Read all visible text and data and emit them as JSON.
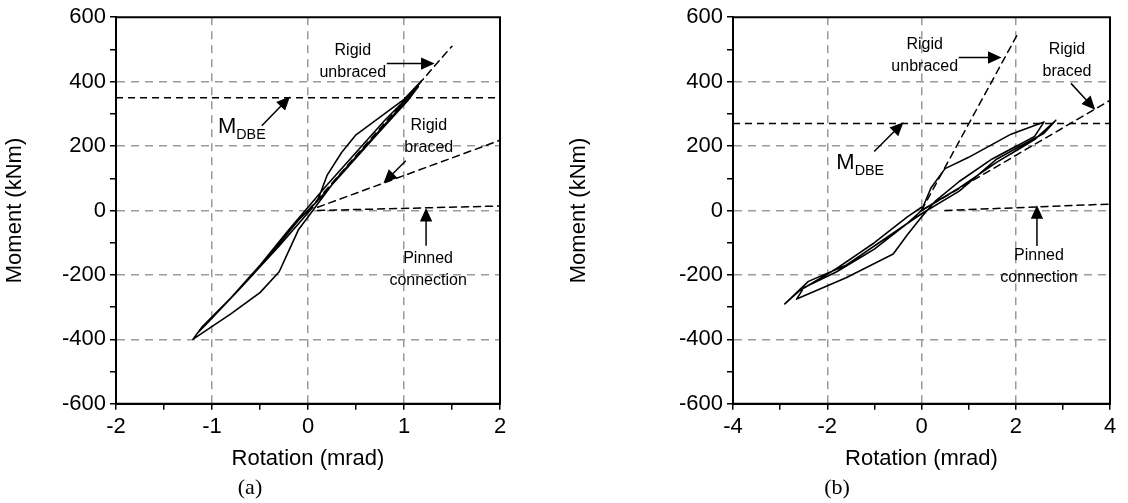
{
  "chart_data": [
    {
      "type": "line",
      "title": "(a)",
      "xlabel": "Rotation (mrad)",
      "ylabel": "Moment (kNm)",
      "xlim": [
        -2,
        2
      ],
      "ylim": [
        -600,
        600
      ],
      "xticks": [
        -2,
        {
          "value": -1.5,
          "label": null
        },
        -1,
        {
          "value": -0.5,
          "label": null
        },
        0,
        {
          "value": 0.5,
          "label": null
        },
        1,
        {
          "value": 1.5,
          "label": null
        },
        2
      ],
      "yticks": [
        -600,
        {
          "value": -500,
          "label": null
        },
        -400,
        {
          "value": -300,
          "label": null
        },
        -200,
        {
          "value": -100,
          "label": null
        },
        0,
        {
          "value": 100,
          "label": null
        },
        200,
        {
          "value": 300,
          "label": null
        },
        400,
        {
          "value": 500,
          "label": null
        },
        600
      ],
      "grid": true,
      "marker": "none",
      "series": [
        {
          "color": "#000000",
          "line_style": "solid",
          "x": [
            0,
            0.1,
            0.2,
            0.35,
            0.5,
            0.75,
            1.0,
            1.18,
            1.1,
            0.9,
            0.6,
            0.3,
            0.1,
            0,
            -0.1,
            -0.3,
            -0.5,
            -0.8,
            -1.2,
            -1.1,
            -0.8,
            -0.5,
            -0.2,
            0,
            0.2,
            0.5,
            0.8,
            1.1,
            1.15,
            1.05,
            0.7,
            0.4,
            0.1,
            -0.1,
            -0.4,
            -0.8,
            -1.15,
            -1.05,
            -0.7,
            -0.3,
            0.05
          ],
          "values": [
            0,
            30,
            110,
            180,
            235,
            290,
            345,
            402,
            370,
            300,
            200,
            100,
            20,
            -20,
            -60,
            -190,
            -255,
            -320,
            -400,
            -360,
            -270,
            -170,
            -60,
            10,
            80,
            180,
            280,
            370,
            385,
            345,
            230,
            130,
            30,
            -30,
            -140,
            -270,
            -380,
            -350,
            -240,
            -110,
            10
          ]
        },
        {
          "color": "#000000",
          "line_style": "dashed",
          "x": [
            0,
            1.5
          ],
          "values": [
            0,
            510
          ]
        },
        {
          "color": "#000000",
          "line_style": "dashed",
          "x": [
            0.1,
            2
          ],
          "values": [
            10,
            218
          ]
        },
        {
          "color": "#000000",
          "line_style": "dashed",
          "x": [
            0.1,
            2
          ],
          "values": [
            0,
            14
          ]
        }
      ],
      "ref_lines": [
        {
          "axis": "y",
          "value": 350,
          "label": "M$_{DBE}$",
          "color": "#000000",
          "line_style": "dashed"
        }
      ],
      "annotations": [
        {
          "text": "Rigid\nunbraced",
          "x": 1.3,
          "y": 456
        },
        {
          "text": "Rigid\nbraced",
          "x": 0.8,
          "y": 89
        },
        {
          "text": "Pinned\nconnection",
          "x": 1.23,
          "y": 2
        }
      ]
    },
    {
      "type": "line",
      "title": "(b)",
      "xlabel": "Rotation (mrad)",
      "ylabel": "Moment (kNm)",
      "xlim": [
        -4,
        4
      ],
      "ylim": [
        -600,
        600
      ],
      "xticks": [
        -4,
        {
          "value": -3,
          "label": null
        },
        -2,
        {
          "value": -1,
          "label": null
        },
        0,
        {
          "value": 1,
          "label": null
        },
        2,
        {
          "value": 3,
          "label": null
        },
        4
      ],
      "yticks": [
        -600,
        {
          "value": -500,
          "label": null
        },
        -400,
        {
          "value": -300,
          "label": null
        },
        -200,
        {
          "value": -100,
          "label": null
        },
        0,
        {
          "value": 100,
          "label": null
        },
        200,
        {
          "value": 300,
          "label": null
        },
        400,
        {
          "value": 500,
          "label": null
        },
        600
      ],
      "grid": true,
      "marker": "none",
      "series": [
        {
          "color": "#000000",
          "line_style": "solid",
          "x": [
            0,
            0.2,
            0.5,
            1,
            1.9,
            2.6,
            2.4,
            1.5,
            0.8,
            0.3,
            0,
            -0.3,
            -0.6,
            -1.6,
            -2.65,
            -2.5,
            -1.8,
            -1,
            -0.3,
            0,
            0.8,
            1.6,
            2.4,
            2.85,
            2.6,
            1.6,
            0.8,
            0,
            -0.8,
            -1.6,
            -2.4,
            -2.9,
            -2.6,
            -1.8,
            -1,
            -0.3,
            0
          ],
          "values": [
            0,
            70,
            130,
            165,
            237,
            275,
            230,
            160,
            90,
            30,
            -20,
            -75,
            -135,
            -209,
            -275,
            -240,
            -190,
            -120,
            -40,
            0,
            70,
            150,
            220,
            280,
            240,
            160,
            60,
            -10,
            -90,
            -170,
            -220,
            -290,
            -250,
            -180,
            -100,
            -20,
            10
          ]
        },
        {
          "color": "#000000",
          "line_style": "dashed",
          "x": [
            0,
            2.03
          ],
          "values": [
            0,
            545
          ]
        },
        {
          "color": "#000000",
          "line_style": "dashed",
          "x": [
            0,
            4
          ],
          "values": [
            0,
            342
          ]
        },
        {
          "color": "#000000",
          "line_style": "dashed",
          "x": [
            0.5,
            4
          ],
          "values": [
            0,
            20
          ]
        }
      ],
      "ref_lines": [
        {
          "axis": "y",
          "value": 270,
          "label": "M$_{DBE}$",
          "color": "#000000",
          "line_style": "dashed"
        }
      ],
      "annotations": [
        {
          "text": "Rigid\nunbraced",
          "x": 1.66,
          "y": 475
        },
        {
          "text": "Rigid\nbraced",
          "x": 3.66,
          "y": 317
        },
        {
          "text": "Pinned\nconnection",
          "x": 2.45,
          "y": 11
        }
      ]
    }
  ]
}
